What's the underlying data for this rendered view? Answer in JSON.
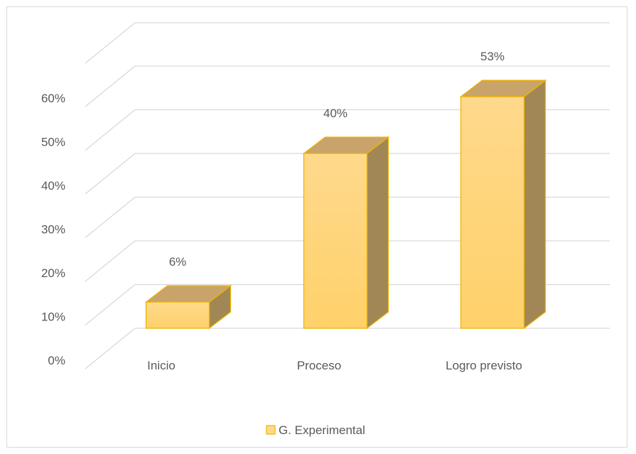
{
  "chart_data": {
    "type": "bar",
    "categories": [
      "Inicio",
      "Proceso",
      "Logro previsto"
    ],
    "series": [
      {
        "name": "G. Experimental",
        "values": [
          6,
          40,
          53
        ],
        "labels": [
          "6%",
          "40%",
          "53%"
        ]
      }
    ],
    "y_ticks": [
      "0%",
      "10%",
      "20%",
      "30%",
      "40%",
      "50%",
      "60%"
    ],
    "ylim": [
      0,
      60
    ],
    "grid": true,
    "legend": "bottom",
    "colors": {
      "front": "#ffd98c",
      "front_bottom": "#ffd16a",
      "top": "#c9a46a",
      "side": "#a08755",
      "edge": "#f0b400",
      "grid": "#d9d9d9"
    }
  }
}
